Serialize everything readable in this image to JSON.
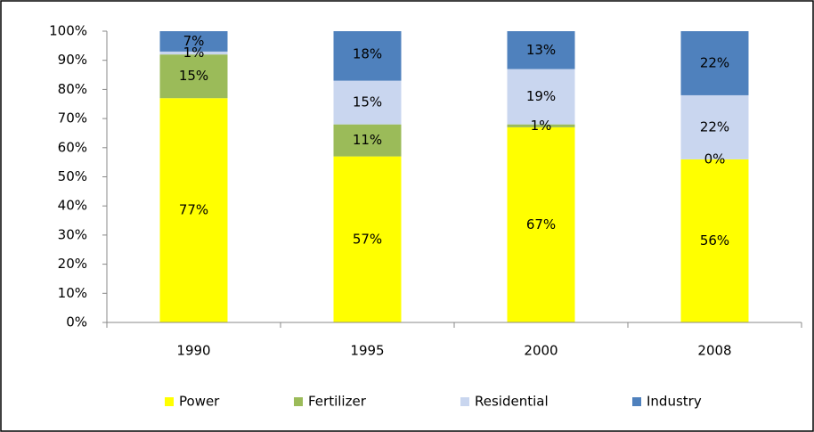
{
  "chart_data": {
    "type": "stacked_bar",
    "categories": [
      "1990",
      "1995",
      "2000",
      "2008"
    ],
    "series": [
      {
        "name": "Power",
        "color": "#ffff00",
        "values": [
          77,
          57,
          67,
          56
        ],
        "value_labels": [
          "77%",
          "57%",
          "67%",
          "56%"
        ]
      },
      {
        "name": "Fertilizer",
        "color": "#9bbb59",
        "values": [
          15,
          11,
          1,
          0
        ],
        "value_labels": [
          "15%",
          "11%",
          "1%",
          "0%"
        ]
      },
      {
        "name": "Residential",
        "color": "#c9d6ef",
        "values": [
          1,
          15,
          19,
          22
        ],
        "value_labels": [
          "1%",
          "15%",
          "19%",
          "22%"
        ]
      },
      {
        "name": "Industry",
        "color": "#4f81bd",
        "values": [
          7,
          18,
          13,
          22
        ],
        "value_labels": [
          "7%",
          "18%",
          "13%",
          "22%"
        ]
      }
    ],
    "ylim": [
      0,
      100
    ],
    "yticks": [
      {
        "value": 0,
        "label": "0%"
      },
      {
        "value": 10,
        "label": "10%"
      },
      {
        "value": 20,
        "label": "20%"
      },
      {
        "value": 30,
        "label": "30%"
      },
      {
        "value": 40,
        "label": "40%"
      },
      {
        "value": 50,
        "label": "50%"
      },
      {
        "value": 60,
        "label": "60%"
      },
      {
        "value": 70,
        "label": "70%"
      },
      {
        "value": 80,
        "label": "80%"
      },
      {
        "value": 90,
        "label": "90%"
      },
      {
        "value": 100,
        "label": "100%"
      }
    ],
    "legend": "bottom"
  }
}
